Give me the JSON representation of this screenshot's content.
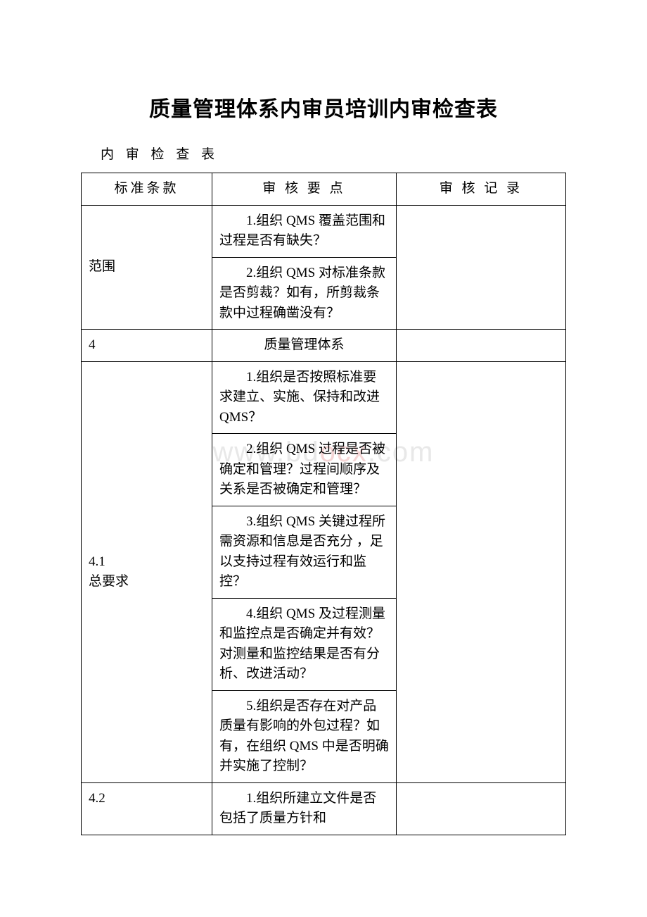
{
  "document": {
    "title": "质量管理体系内审员培训内审检查表",
    "subtitle": "内 审 检 查 表"
  },
  "table": {
    "headers": {
      "col1": "标准条款",
      "col2": "审 核 要 点",
      "col3": "审 核 记 录"
    },
    "rows": [
      {
        "clause": "范围",
        "points": [
          "1.组织 QMS 覆盖范围和过程是否有缺失？",
          "2.组织 QMS 对标准条款是否剪裁？如有，所剪裁条款中过程确凿没有？"
        ],
        "record": ""
      },
      {
        "clause": "4",
        "section_title": "质量管理体系",
        "is_section": true
      },
      {
        "clause_line1": "4.1",
        "clause_line2": "总要求",
        "points": [
          "1.组织是否按照标准要求建立、实施、保持和改进 QMS？",
          "2.组织 QMS 过程是否被确定和管理？过程间顺序及关系是否被确定和管理？",
          "3.组织 QMS 关键过程所需资源和信息是否充分 ，足以支持过程有效运行和监控？",
          "4.组织 QMS 及过程测量和监控点是否确定并有效？对测量和监控结果是否有分析、改进活动？",
          "5.组织是否存在对产品质量有影响的外包过程？如有，在组织 QMS 中是否明确并实施了控制？"
        ],
        "record": ""
      },
      {
        "clause": "4.2",
        "points": [
          "1.组织所建立文件是否包括了质量方针和"
        ],
        "record": ""
      }
    ]
  },
  "watermark": {
    "prefix": "www.bd",
    "red": "ocx",
    "suffix": ".com"
  }
}
